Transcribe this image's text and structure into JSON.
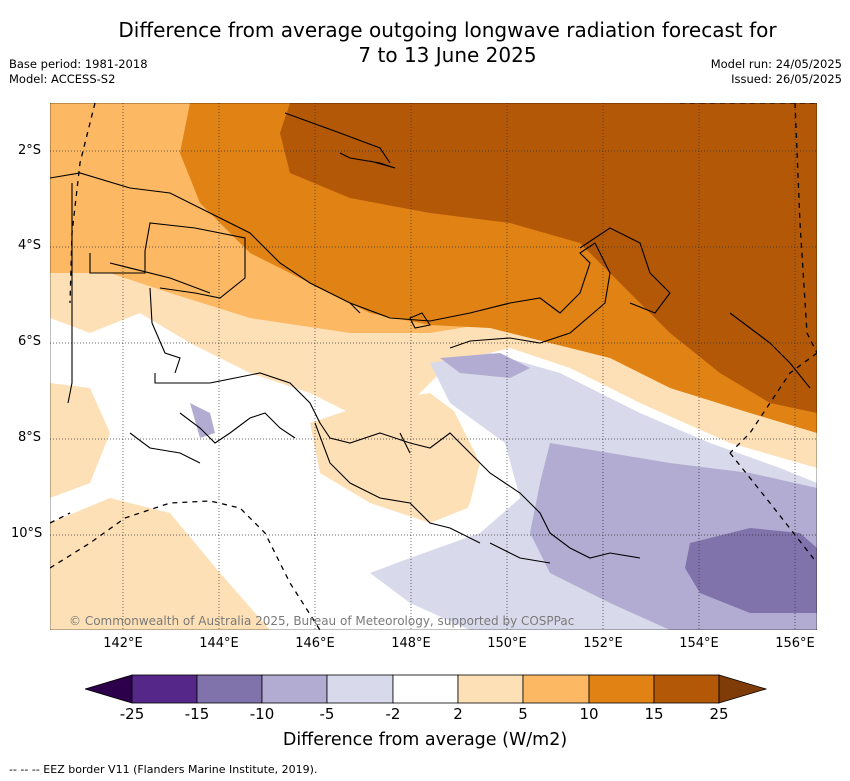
{
  "title_line1": "Difference from average outgoing longwave radiation forecast for",
  "title_line2": "7 to 13 June 2025",
  "base_period": "Base period: 1981-2018",
  "model": "Model: ACCESS-S2",
  "model_run": "Model run: 24/05/2025",
  "issued": "Issued: 26/05/2025",
  "lat_ticks": [
    "2°S",
    "4°S",
    "6°S",
    "8°S",
    "10°S"
  ],
  "lon_ticks": [
    "142°E",
    "144°E",
    "146°E",
    "148°E",
    "150°E",
    "152°E",
    "154°E",
    "156°E"
  ],
  "copyright": "© Commonwealth of Australia 2025, Bureau of Meteorology, supported by COSPPac",
  "colorbar": {
    "labels": [
      "-25",
      "-15",
      "-10",
      "-5",
      "-2",
      "2",
      "5",
      "10",
      "15",
      "25"
    ],
    "colors": [
      "#2d004b",
      "#542788",
      "#8073ac",
      "#b2abd2",
      "#d8daeb",
      "#ffffff",
      "#fee0b6",
      "#fdb863",
      "#e08214",
      "#b35806",
      "#7f3b08"
    ],
    "title": "Difference from average (W/m2)"
  },
  "footnote": "-- -- -- EEZ border V11 (Flanders Marine Institute, 2019)."
}
